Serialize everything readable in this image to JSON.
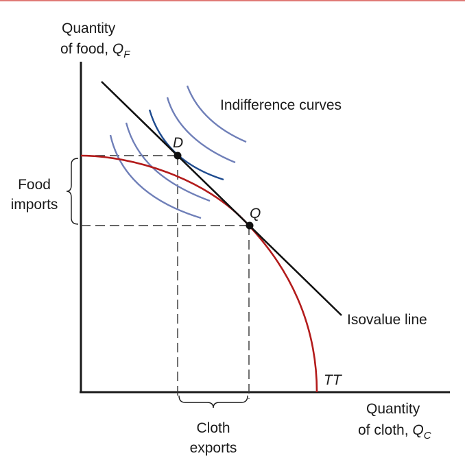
{
  "colors": {
    "top_rule": "#e07a76",
    "axes": "#1a1a1a",
    "tt_curve": "#b31b1b",
    "indifference_light": "#6f7fb8",
    "indifference_tangent": "#1e4b8f",
    "isovalue": "#111111",
    "dashes": "#333333"
  },
  "y_axis_label": {
    "line1": "Quantity",
    "line2": "of food, ",
    "var": "Q",
    "sub": "F"
  },
  "x_axis_label": {
    "line1": "Quantity",
    "line2": "of cloth, ",
    "var": "Q",
    "sub": "C"
  },
  "curve_labels": {
    "indifference": "Indifference curves",
    "isovalue": "Isovalue line",
    "tt": "TT"
  },
  "points": {
    "d": "D",
    "q": "Q"
  },
  "brackets": {
    "food_imports": {
      "line1": "Food",
      "line2": "imports"
    },
    "cloth_exports": {
      "line1": "Cloth",
      "line2": "exports"
    }
  }
}
